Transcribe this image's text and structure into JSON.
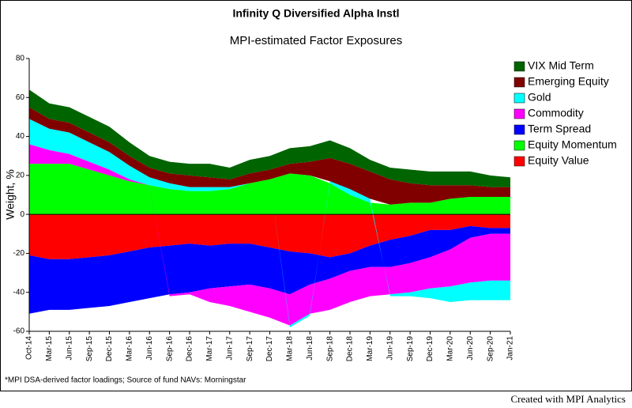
{
  "chart_data": {
    "type": "stacked-area",
    "title": "Infinity Q Diversified Alpha Instl",
    "subtitle": "MPI-estimated Factor Exposures",
    "y_label": "Weight, %",
    "footnote": "*MPI DSA-derived factor loadings; Source of fund NAVs: Morningstar",
    "credit": "Created with MPI Analytics",
    "categories": [
      "Oct-14",
      "Mar-15",
      "Jun-15",
      "Sep-15",
      "Dec-15",
      "Mar-16",
      "Jun-16",
      "Sep-16",
      "Dec-16",
      "Mar-17",
      "Jun-17",
      "Sep-17",
      "Dec-17",
      "Mar-18",
      "Jun-18",
      "Sep-18",
      "Dec-18",
      "Mar-19",
      "Jun-19",
      "Sep-19",
      "Dec-19",
      "Mar-20",
      "Jun-20",
      "Sep-20",
      "Jan-21"
    ],
    "ylim": [
      -60,
      80
    ],
    "yticks": [
      -60,
      -40,
      -20,
      0,
      20,
      40,
      60,
      80
    ],
    "series": [
      {
        "name": "Equity Value",
        "color": "#ff0000",
        "values": [
          -21,
          -23,
          -23,
          -22,
          -21,
          -19,
          -17,
          -16,
          -15,
          -16,
          -15,
          -15,
          -17,
          -19,
          -20,
          -22,
          -20,
          -16,
          -13,
          -11,
          -8,
          -8,
          -6,
          -7,
          -7
        ]
      },
      {
        "name": "Equity Momentum",
        "color": "#00ff00",
        "values": [
          26,
          26,
          26,
          23,
          20,
          17,
          15,
          13,
          12,
          12,
          13,
          16,
          18,
          21,
          20,
          16,
          10,
          6,
          5,
          6,
          6,
          8,
          9,
          9,
          9
        ]
      },
      {
        "name": "Term Spread",
        "color": "#0000ff",
        "values": [
          -30,
          -26,
          -26,
          -26,
          -26,
          -26,
          -26,
          -25,
          -25,
          -22,
          -22,
          -21,
          -21,
          -22,
          -16,
          -11,
          -9,
          -11,
          -14,
          -14,
          -14,
          -10,
          -6,
          -3,
          -3
        ]
      },
      {
        "name": "Commodity",
        "color": "#ff00ff",
        "values": [
          10,
          7,
          5,
          4,
          3,
          1,
          0,
          -1,
          -1,
          -7,
          -10,
          -14,
          -15,
          -16,
          -15,
          -16,
          -16,
          -15,
          -14,
          -15,
          -16,
          -19,
          -23,
          -24,
          -24
        ]
      },
      {
        "name": "Gold",
        "color": "#00ffff",
        "values": [
          13,
          11,
          11,
          10,
          9,
          7,
          4,
          3,
          2,
          2,
          1,
          0,
          0,
          -1,
          -1,
          1,
          3,
          2,
          -1,
          -2,
          -5,
          -8,
          -9,
          -10,
          -10
        ]
      },
      {
        "name": "Emerging Equity",
        "color": "#800000",
        "values": [
          6,
          5,
          5,
          5,
          5,
          5,
          5,
          5,
          6,
          5,
          4,
          5,
          5,
          5,
          7,
          12,
          13,
          14,
          13,
          10,
          9,
          7,
          6,
          5,
          5
        ]
      },
      {
        "name": "VIX Mid Term",
        "color": "#006400",
        "values": [
          9,
          8,
          8,
          8,
          8,
          7,
          6,
          6,
          6,
          7,
          6,
          7,
          7,
          8,
          8,
          9,
          8,
          6,
          6,
          7,
          7,
          7,
          7,
          6,
          5
        ]
      }
    ]
  }
}
